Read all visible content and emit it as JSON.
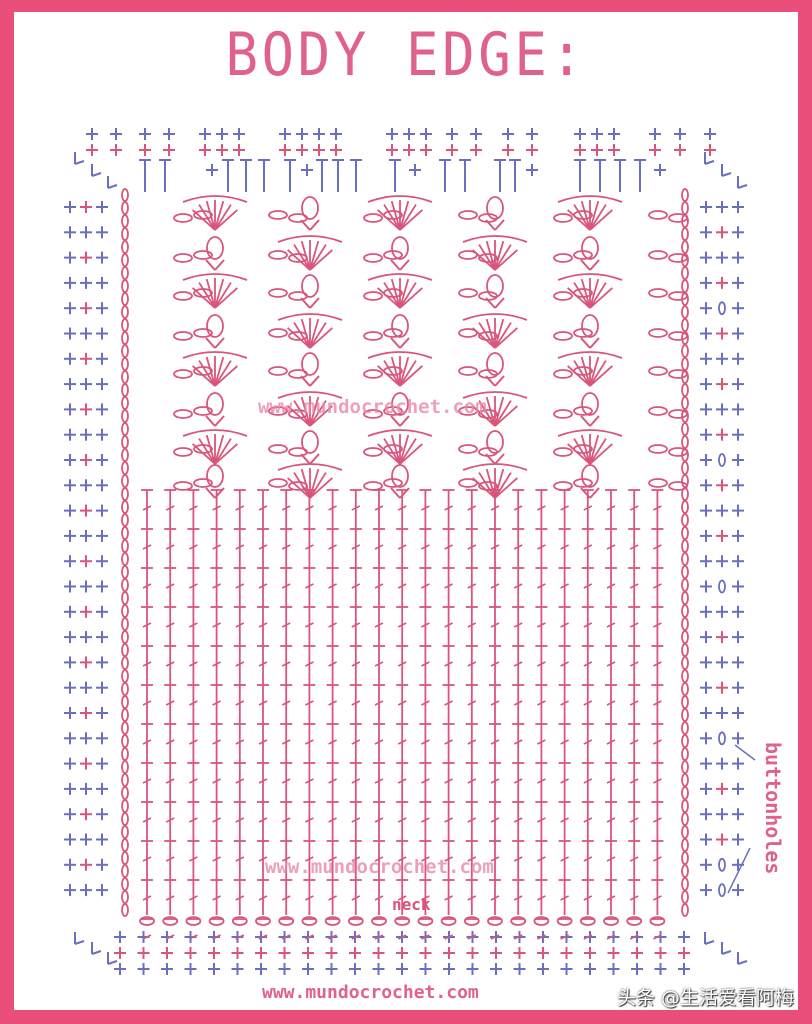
{
  "title": "BODY EDGE:",
  "watermarks": [
    "www.mundocrochet.com",
    "www.mundocrochet.com",
    "www.mundocrochet.com"
  ],
  "labels": {
    "neck": "neck",
    "buttonholes": "buttonholes"
  },
  "corner_watermark": "头条 @生活爱看阿梅",
  "colors": {
    "frame": "#e94f7a",
    "stitch_pink": "#d9557a",
    "stitch_blue": "#6a6fc0",
    "text": "#e0628c"
  }
}
